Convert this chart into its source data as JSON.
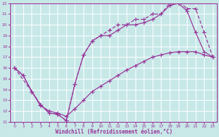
{
  "xlabel": "Windchill (Refroidissement éolien,°C)",
  "xlim": [
    -0.5,
    23.5
  ],
  "ylim": [
    11,
    22
  ],
  "xticks": [
    0,
    1,
    2,
    3,
    4,
    5,
    6,
    7,
    8,
    9,
    10,
    11,
    12,
    13,
    14,
    15,
    16,
    17,
    18,
    19,
    20,
    21,
    22,
    23
  ],
  "yticks": [
    11,
    12,
    13,
    14,
    15,
    16,
    17,
    18,
    19,
    20,
    21,
    22
  ],
  "bg_color": "#c8e8e8",
  "grid_color": "#ffffff",
  "line_color": "#993399",
  "line1_x": [
    0,
    1,
    2,
    3,
    4,
    5,
    6,
    7,
    8,
    9,
    10,
    11,
    12,
    13,
    14,
    15,
    16,
    17,
    18,
    19,
    20,
    21,
    22,
    23
  ],
  "line1_y": [
    16.0,
    15.3,
    13.8,
    12.6,
    11.8,
    11.7,
    11.1,
    14.5,
    17.2,
    18.5,
    19.0,
    19.0,
    19.5,
    20.0,
    20.0,
    20.2,
    20.5,
    21.0,
    21.8,
    22.0,
    21.3,
    19.3,
    17.5,
    17.0
  ],
  "line2_x": [
    0,
    2,
    3,
    4,
    5,
    6,
    7,
    8,
    9,
    10,
    11,
    12,
    13,
    14,
    15,
    16,
    17,
    18,
    19,
    20,
    21,
    22,
    23
  ],
  "line2_y": [
    16.0,
    13.8,
    12.6,
    11.8,
    11.7,
    11.1,
    14.5,
    17.2,
    18.5,
    19.0,
    19.5,
    20.0,
    20.0,
    20.5,
    20.5,
    21.0,
    21.0,
    22.0,
    22.2,
    21.5,
    21.5,
    19.3,
    17.0
  ],
  "line3_x": [
    0,
    1,
    2,
    3,
    4,
    5,
    6,
    7,
    8,
    9,
    10,
    11,
    12,
    13,
    14,
    15,
    16,
    17,
    18,
    19,
    20,
    21,
    22,
    23
  ],
  "line3_y": [
    16.0,
    15.3,
    13.8,
    12.5,
    12.0,
    11.8,
    11.5,
    12.2,
    13.0,
    13.8,
    14.3,
    14.8,
    15.3,
    15.8,
    16.2,
    16.6,
    17.0,
    17.2,
    17.4,
    17.5,
    17.5,
    17.5,
    17.2,
    17.0
  ]
}
